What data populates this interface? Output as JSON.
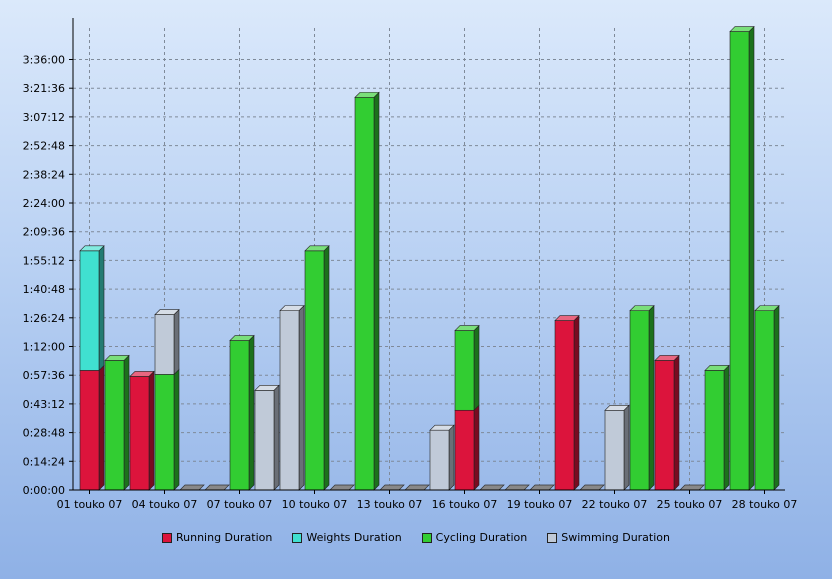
{
  "chart_data": {
    "type": "bar",
    "stacked": true,
    "style": "3d",
    "title": "",
    "xlabel": "",
    "ylabel": "",
    "x_tick_labels": [
      "01 touko 07",
      "04 touko 07",
      "07 touko 07",
      "10 touko 07",
      "13 touko 07",
      "16 touko 07",
      "19 touko 07",
      "22 touko 07",
      "25 touko 07",
      "28 touko 07"
    ],
    "y_tick_labels": [
      "0:00:00",
      "0:14:24",
      "0:28:48",
      "0:43:12",
      "0:57:36",
      "1:12:00",
      "1:26:24",
      "1:40:48",
      "1:55:12",
      "2:09:36",
      "2:24:00",
      "2:38:24",
      "2:52:48",
      "3:07:12",
      "3:21:36",
      "3:36:00"
    ],
    "y_unit": "minutes",
    "y_tick_step": 14.4,
    "ylim": [
      0,
      230
    ],
    "grid": true,
    "legend_position": "bottom",
    "series": [
      {
        "name": "Running Duration",
        "color": "#dc143c"
      },
      {
        "name": "Weights Duration",
        "color": "#40e0d0"
      },
      {
        "name": "Cycling Duration",
        "color": "#32cd32"
      },
      {
        "name": "Swimming Duration",
        "color": "#c0cad8"
      }
    ],
    "bars": [
      {
        "date": "01 touko 07",
        "values": [
          {
            "series": "Running Duration",
            "value": 60
          },
          {
            "series": "Weights Duration",
            "value": 60
          }
        ]
      },
      {
        "date": "02 touko 07",
        "values": [
          {
            "series": "Cycling Duration",
            "value": 65
          }
        ]
      },
      {
        "date": "03 touko 07",
        "values": [
          {
            "series": "Running Duration",
            "value": 57
          }
        ]
      },
      {
        "date": "04 touko 07",
        "values": [
          {
            "series": "Cycling Duration",
            "value": 58
          },
          {
            "series": "Swimming Duration",
            "value": 30
          }
        ]
      },
      {
        "date": "05 touko 07",
        "values": []
      },
      {
        "date": "06 touko 07",
        "values": []
      },
      {
        "date": "07 touko 07",
        "values": [
          {
            "series": "Cycling Duration",
            "value": 75
          }
        ]
      },
      {
        "date": "08 touko 07",
        "values": [
          {
            "series": "Swimming Duration",
            "value": 50
          }
        ]
      },
      {
        "date": "09 touko 07",
        "values": [
          {
            "series": "Swimming Duration",
            "value": 90
          }
        ]
      },
      {
        "date": "10 touko 07",
        "values": [
          {
            "series": "Cycling Duration",
            "value": 120
          }
        ]
      },
      {
        "date": "11 touko 07",
        "values": []
      },
      {
        "date": "12 touko 07",
        "values": [
          {
            "series": "Cycling Duration",
            "value": 197
          }
        ]
      },
      {
        "date": "13 touko 07",
        "values": []
      },
      {
        "date": "14 touko 07",
        "values": []
      },
      {
        "date": "15 touko 07",
        "values": [
          {
            "series": "Swimming Duration",
            "value": 30
          }
        ]
      },
      {
        "date": "16 touko 07",
        "values": [
          {
            "series": "Running Duration",
            "value": 40
          },
          {
            "series": "Cycling Duration",
            "value": 40
          }
        ]
      },
      {
        "date": "17 touko 07",
        "values": []
      },
      {
        "date": "18 touko 07",
        "values": []
      },
      {
        "date": "19 touko 07",
        "values": []
      },
      {
        "date": "20 touko 07",
        "values": [
          {
            "series": "Running Duration",
            "value": 85
          }
        ]
      },
      {
        "date": "21 touko 07",
        "values": []
      },
      {
        "date": "22 touko 07",
        "values": [
          {
            "series": "Swimming Duration",
            "value": 40
          }
        ]
      },
      {
        "date": "23 touko 07",
        "values": [
          {
            "series": "Cycling Duration",
            "value": 90
          }
        ]
      },
      {
        "date": "24 touko 07",
        "values": [
          {
            "series": "Running Duration",
            "value": 65
          }
        ]
      },
      {
        "date": "25 touko 07",
        "values": []
      },
      {
        "date": "26 touko 07",
        "values": [
          {
            "series": "Cycling Duration",
            "value": 60
          }
        ]
      },
      {
        "date": "27 touko 07",
        "values": [
          {
            "series": "Cycling Duration",
            "value": 230
          }
        ]
      },
      {
        "date": "28 touko 07",
        "values": [
          {
            "series": "Cycling Duration",
            "value": 90
          }
        ]
      }
    ]
  }
}
